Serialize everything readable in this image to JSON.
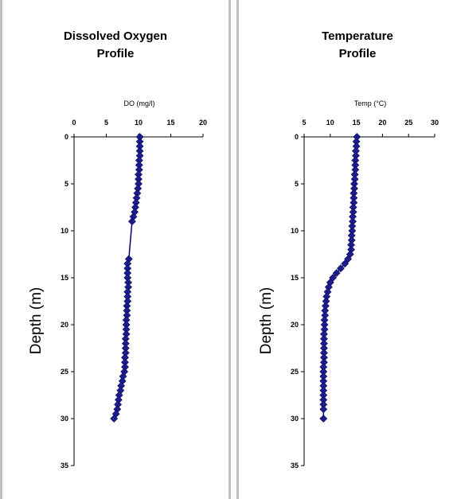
{
  "chart_data": [
    {
      "type": "scatter",
      "title": "Dissolved Oxygen Profile",
      "title_lines": [
        "Dissolved Oxygen",
        "Profile"
      ],
      "xlabel": "DO (mg/l)",
      "ylabel": "Depth (m)",
      "xlim": [
        0,
        20
      ],
      "ylim": [
        0,
        35
      ],
      "x_ticks": [
        0,
        5,
        10,
        15,
        20
      ],
      "y_ticks": [
        0,
        5,
        10,
        15,
        20,
        25,
        30,
        35
      ],
      "x_axis_position": "top",
      "y_inverted": true,
      "marker_color": "#1c1c8c",
      "line_color": "#000080",
      "x": [
        10.2,
        10.2,
        10.2,
        10.2,
        10.2,
        10.1,
        10.1,
        10.1,
        10.0,
        10.0,
        10.0,
        9.9,
        9.8,
        9.7,
        9.6,
        9.5,
        9.4,
        9.2,
        9.0,
        8.5,
        8.3,
        8.3,
        8.3,
        8.3,
        8.4,
        8.4,
        8.3,
        8.3,
        8.3,
        8.2,
        8.2,
        8.2,
        8.1,
        8.1,
        8.1,
        8.1,
        8.0,
        8.0,
        8.0,
        8.0,
        7.9,
        7.9,
        7.9,
        7.8,
        7.6,
        7.5,
        7.3,
        7.2,
        7.0,
        6.9,
        6.8,
        6.7,
        6.5,
        6.2
      ],
      "y": [
        0,
        0.5,
        1,
        1.5,
        2,
        2.5,
        3,
        3.5,
        4,
        4.5,
        5,
        5.5,
        6,
        6.5,
        7,
        7.5,
        8,
        8.5,
        9,
        13,
        13.5,
        14,
        14.5,
        15,
        15.5,
        16,
        16.5,
        17,
        17.5,
        18,
        18.5,
        19,
        19.5,
        20,
        20.5,
        21,
        21.5,
        22,
        22.5,
        23,
        23.5,
        24,
        24.5,
        25,
        25.5,
        26,
        26.5,
        27,
        27.5,
        28,
        28.5,
        29,
        29.5,
        30
      ]
    },
    {
      "type": "scatter",
      "title": "Temperature Profile",
      "title_lines": [
        "Temperature",
        "Profile"
      ],
      "xlabel": "Temp (°C)",
      "ylabel": "Depth (m)",
      "xlim": [
        5,
        30
      ],
      "ylim": [
        0,
        35
      ],
      "x_ticks": [
        5,
        10,
        15,
        20,
        25,
        30
      ],
      "y_ticks": [
        0,
        5,
        10,
        15,
        20,
        25,
        30,
        35
      ],
      "x_axis_position": "top",
      "y_inverted": true,
      "marker_color": "#1c1c8c",
      "line_color": "#000080",
      "x": [
        15.1,
        15.0,
        15.0,
        14.9,
        14.9,
        14.8,
        14.8,
        14.8,
        14.7,
        14.7,
        14.6,
        14.6,
        14.5,
        14.5,
        14.5,
        14.4,
        14.4,
        14.3,
        14.3,
        14.2,
        14.2,
        14.1,
        14.1,
        14.0,
        14.0,
        13.8,
        13.4,
        12.8,
        12.0,
        11.2,
        10.5,
        10.0,
        9.7,
        9.5,
        9.3,
        9.2,
        9.1,
        9.0,
        9.0,
        8.9,
        8.9,
        8.9,
        8.8,
        8.8,
        8.8,
        8.8,
        8.8,
        8.8,
        8.8,
        8.7,
        8.7,
        8.7,
        8.7,
        8.7,
        8.7,
        8.7,
        8.7,
        8.7,
        8.7,
        8.7
      ],
      "y": [
        0,
        0.5,
        1,
        1.5,
        2,
        2.5,
        3,
        3.5,
        4,
        4.5,
        5,
        5.5,
        6,
        6.5,
        7,
        7.5,
        8,
        8.5,
        9,
        9.5,
        10,
        10.5,
        11,
        11.5,
        12,
        12.5,
        13,
        13.5,
        14,
        14.5,
        15,
        15.5,
        16,
        16.5,
        17,
        17.5,
        18,
        18.5,
        19,
        19.5,
        20,
        20.5,
        21,
        21.5,
        22,
        22.5,
        23,
        23.5,
        24,
        24.5,
        25,
        25.5,
        26,
        26.5,
        27,
        27.5,
        28,
        28.5,
        29,
        30
      ]
    }
  ]
}
